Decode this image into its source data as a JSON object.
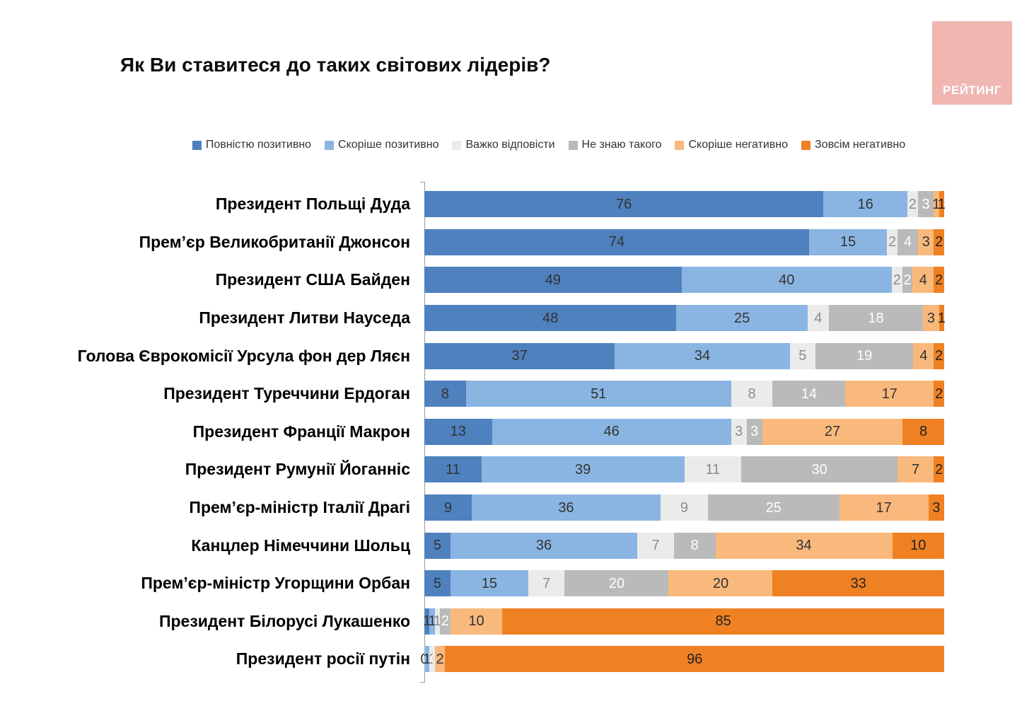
{
  "logo": {
    "text": "РЕЙТИНГ",
    "background": "#f0b6b2",
    "text_color": "#ffffff"
  },
  "title": "Як Ви ставитеся до таких світових лідерів?",
  "chart_data": {
    "type": "bar",
    "orientation": "horizontal",
    "stacked": true,
    "units": "percent",
    "xlim": [
      0,
      100
    ],
    "grid": false,
    "legend_position": "top-center",
    "title": "Як Ви ставитеся до таких світових лідерів?",
    "categories": [
      "Президент Польщі Дуда",
      "Прем’єр Великобританії Джонсон",
      "Президент США Байден",
      "Президент Литви Науседа",
      "Голова Єврокомісії Урсула фон дер Ляєн",
      "Президент Туреччини Ердоган",
      "Президент Франції Макрон",
      "Президент Румунії Йоганніс",
      "Прем’єр-міністр Італії Драгі",
      "Канцлер Німеччини Шольц",
      "Прем’єр-міністр Угорщини Орбан",
      "Президент Білорусі Лукашенко",
      "Президент росії путін"
    ],
    "series": [
      {
        "name": "Повністю позитивно",
        "color": "#4e81be",
        "label_color": "#333333",
        "values": [
          76,
          74,
          49,
          48,
          37,
          8,
          13,
          11,
          9,
          5,
          5,
          1,
          0
        ]
      },
      {
        "name": "Скоріше позитивно",
        "color": "#8ab5e2",
        "label_color": "#333333",
        "values": [
          16,
          15,
          40,
          25,
          34,
          51,
          46,
          39,
          36,
          36,
          15,
          1,
          1
        ]
      },
      {
        "name": "Важко відповісти",
        "color": "#ebebeb",
        "label_color": "#8c8c8c",
        "values": [
          2,
          2,
          2,
          4,
          5,
          8,
          3,
          11,
          9,
          7,
          7,
          1,
          1
        ]
      },
      {
        "name": "Не знаю такого",
        "color": "#bababa",
        "label_color": "#ffffff",
        "values": [
          3,
          4,
          2,
          18,
          19,
          14,
          3,
          30,
          25,
          8,
          20,
          2,
          0
        ]
      },
      {
        "name": "Скоріше негативно",
        "color": "#f9b97c",
        "label_color": "#333333",
        "values": [
          1,
          3,
          4,
          3,
          4,
          17,
          27,
          7,
          17,
          34,
          20,
          10,
          2
        ]
      },
      {
        "name": "Зовсім негативно",
        "color": "#ef8123",
        "label_color": "#222222",
        "values": [
          1,
          2,
          2,
          1,
          2,
          2,
          8,
          2,
          3,
          10,
          33,
          85,
          96
        ]
      }
    ]
  }
}
